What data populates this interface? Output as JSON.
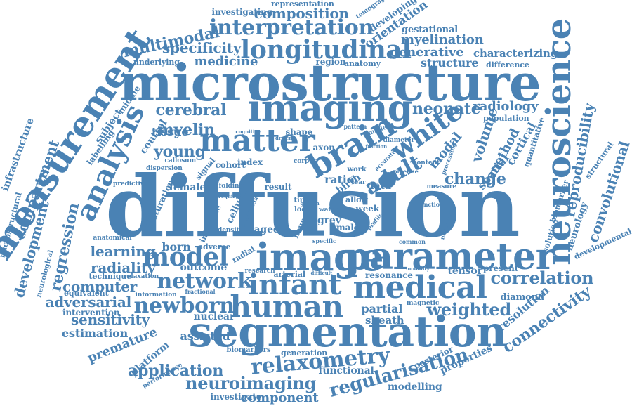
{
  "color": "#4a82b4",
  "words": [
    {
      "key": "diffusion",
      "text": "diffusion"
    },
    {
      "key": "microstructure",
      "text": "microstructure"
    },
    {
      "key": "segmentation",
      "text": "segmentation"
    },
    {
      "key": "image",
      "text": "image"
    },
    {
      "key": "parameter",
      "text": "parameter"
    },
    {
      "key": "imaging",
      "text": "imaging"
    },
    {
      "key": "measurement",
      "text": "measurement"
    },
    {
      "key": "neuroscience",
      "text": "neuroscience"
    },
    {
      "key": "matter",
      "text": "matter"
    },
    {
      "key": "brain",
      "text": "brain"
    },
    {
      "key": "medical",
      "text": "medical"
    },
    {
      "key": "human",
      "text": "human"
    },
    {
      "key": "infant",
      "text": "infant"
    },
    {
      "key": "longitudinal",
      "text": "longitudinal"
    },
    {
      "key": "interpretation",
      "text": "interpretation"
    },
    {
      "key": "analysis",
      "text": "analysis"
    },
    {
      "key": "white",
      "text": "white"
    },
    {
      "key": "model",
      "text": "model"
    },
    {
      "key": "relaxometry",
      "text": "relaxometry"
    },
    {
      "key": "network",
      "text": "network"
    },
    {
      "key": "newborn",
      "text": "newborn"
    },
    {
      "key": "adult",
      "text": "adult"
    },
    {
      "key": "regularisation",
      "text": "regularisation"
    },
    {
      "key": "neuroimaging",
      "text": "neuroimaging"
    },
    {
      "key": "application",
      "text": "application"
    },
    {
      "key": "reproducibility",
      "text": "reproducibility"
    },
    {
      "key": "convolutional",
      "text": "convolutional"
    },
    {
      "key": "correlation",
      "text": "correlation"
    },
    {
      "key": "weighted",
      "text": "weighted"
    },
    {
      "key": "computer",
      "text": "computer"
    },
    {
      "key": "adversarial",
      "text": "adversarial"
    },
    {
      "key": "connectivity",
      "text": "connectivity"
    },
    {
      "key": "regression",
      "text": "regression"
    },
    {
      "key": "compartment",
      "text": "compartment"
    },
    {
      "key": "development",
      "text": "development"
    },
    {
      "key": "multimodal",
      "text": "multimodal"
    },
    {
      "key": "specificity",
      "text": "specificity"
    },
    {
      "key": "composition",
      "text": "composition"
    },
    {
      "key": "cerebral",
      "text": "cerebral"
    },
    {
      "key": "myelin",
      "text": "myelin"
    },
    {
      "key": "young",
      "text": "young"
    },
    {
      "key": "neonate",
      "text": "neonate"
    },
    {
      "key": "change",
      "text": "change"
    },
    {
      "key": "learning",
      "text": "learning"
    },
    {
      "key": "radiality",
      "text": "radiality"
    },
    {
      "key": "sensitivity",
      "text": "sensitivity"
    },
    {
      "key": "estimation",
      "text": "estimation"
    },
    {
      "key": "premature",
      "text": "premature"
    },
    {
      "key": "component",
      "text": "component"
    },
    {
      "key": "infrastructure",
      "text": "infrastructure"
    },
    {
      "key": "medicine",
      "text": "medicine"
    },
    {
      "key": "orientation",
      "text": "orientation"
    },
    {
      "key": "myelination",
      "text": "myelination"
    },
    {
      "key": "generative",
      "text": "generative"
    },
    {
      "key": "characterizing",
      "text": "characterizing"
    },
    {
      "key": "structure",
      "text": "structure"
    },
    {
      "key": "radiology",
      "text": "radiology"
    },
    {
      "key": "volume",
      "text": "volume"
    },
    {
      "key": "modal",
      "text": "modal"
    },
    {
      "key": "method",
      "text": "method"
    },
    {
      "key": "spatial",
      "text": "spatial"
    },
    {
      "key": "cortical",
      "text": "cortical"
    },
    {
      "key": "tissue",
      "text": "tissue"
    },
    {
      "key": "control",
      "text": "control"
    },
    {
      "key": "subject",
      "text": "subject"
    },
    {
      "key": "middle",
      "text": "middle"
    },
    {
      "key": "labelling",
      "text": "labelling"
    },
    {
      "key": "born",
      "text": "born"
    },
    {
      "key": "outcome",
      "text": "outcome"
    },
    {
      "key": "nuclear",
      "text": "nuclear"
    },
    {
      "key": "assisted",
      "text": "assisted"
    },
    {
      "key": "platform",
      "text": "platform"
    },
    {
      "key": "partial",
      "text": "partial"
    },
    {
      "key": "sheath",
      "text": "sheath"
    },
    {
      "key": "resonance",
      "text": "resonance"
    },
    {
      "key": "tensor",
      "text": "tensor"
    },
    {
      "key": "present",
      "text": "present"
    },
    {
      "key": "diamond",
      "text": "diamond"
    },
    {
      "key": "resolution",
      "text": "resolution"
    },
    {
      "key": "functional",
      "text": "functional"
    },
    {
      "key": "modelling",
      "text": "modelling"
    },
    {
      "key": "properties",
      "text": "properties"
    },
    {
      "key": "posterior",
      "text": "posterior"
    },
    {
      "key": "investigate",
      "text": "investigate"
    },
    {
      "key": "female",
      "text": "female"
    },
    {
      "key": "result",
      "text": "result"
    },
    {
      "key": "ratio",
      "text": "ratio"
    },
    {
      "key": "data",
      "text": "data"
    },
    {
      "key": "week",
      "text": "week"
    },
    {
      "key": "grey",
      "text": "grey"
    },
    {
      "key": "male",
      "text": "male"
    },
    {
      "key": "aged",
      "text": "aged"
    },
    {
      "key": "cellular",
      "text": "cellular"
    },
    {
      "key": "maturation",
      "text": "maturation"
    },
    {
      "key": "inference",
      "text": "inference"
    },
    {
      "key": "cohort",
      "text": "cohort"
    },
    {
      "key": "index",
      "text": "index"
    },
    {
      "key": "axon",
      "text": "axon"
    },
    {
      "key": "shape",
      "text": "shape"
    },
    {
      "key": "neural",
      "text": "neural"
    },
    {
      "key": "birth",
      "text": "birth"
    },
    {
      "key": "allow",
      "text": "allow"
    },
    {
      "key": "region",
      "text": "region"
    },
    {
      "key": "anatomy",
      "text": "anatomy"
    },
    {
      "key": "underlying",
      "text": "underlying"
    },
    {
      "key": "difference",
      "text": "difference"
    },
    {
      "key": "population",
      "text": "population"
    },
    {
      "key": "quantitative",
      "text": "quantitative"
    },
    {
      "key": "structural",
      "text": "structural"
    },
    {
      "key": "biomarker",
      "text": "biomarker"
    },
    {
      "key": "neurology",
      "text": "neurology"
    },
    {
      "key": "solution",
      "text": "solution"
    },
    {
      "key": "developmental",
      "text": "developmental"
    },
    {
      "key": "microstructural",
      "text": "microstructural"
    },
    {
      "key": "neurological",
      "text": "neurological"
    },
    {
      "key": "anatomical",
      "text": "anatomical"
    },
    {
      "key": "technique",
      "text": "technique"
    },
    {
      "key": "relaxation",
      "text": "relaxation"
    },
    {
      "key": "equivalent",
      "text": "equivalent"
    },
    {
      "key": "intervention",
      "text": "intervention"
    },
    {
      "key": "information",
      "text": "information"
    },
    {
      "key": "performance",
      "text": "performance"
    },
    {
      "key": "biomarkers",
      "text": "biomarkers"
    },
    {
      "key": "generation",
      "text": "generation"
    },
    {
      "key": "investigating",
      "text": "investigating"
    },
    {
      "key": "representation",
      "text": "representation"
    },
    {
      "key": "tomography",
      "text": "tomography"
    },
    {
      "key": "developing",
      "text": "developing"
    },
    {
      "key": "gestational",
      "text": "gestational"
    },
    {
      "key": "callosum",
      "text": "callosum"
    },
    {
      "key": "signal",
      "text": "signal"
    },
    {
      "key": "dispersion",
      "text": "dispersion"
    },
    {
      "key": "predictive",
      "text": "predictive"
    },
    {
      "key": "folding",
      "text": "folding"
    },
    {
      "key": "substantial",
      "text": "substantial"
    },
    {
      "key": "density",
      "text": "density"
    },
    {
      "key": "adverse",
      "text": "adverse"
    },
    {
      "key": "radial",
      "text": "radial"
    },
    {
      "key": "research",
      "text": "research"
    },
    {
      "key": "arterial",
      "text": "arterial"
    },
    {
      "key": "fractional",
      "text": "fractional"
    },
    {
      "key": "growth",
      "text": "growth"
    },
    {
      "key": "magnetic",
      "text": "magnetic"
    },
    {
      "key": "cognitive",
      "text": "cognitive"
    },
    {
      "key": "driven",
      "text": "driven"
    },
    {
      "key": "pattern",
      "text": "pattern"
    },
    {
      "key": "smaller",
      "text": "smaller"
    },
    {
      "key": "diameter",
      "text": "diameter"
    },
    {
      "key": "content",
      "text": "content"
    },
    {
      "key": "processing",
      "text": "processing"
    },
    {
      "key": "measure",
      "text": "measure"
    },
    {
      "key": "function",
      "text": "function"
    },
    {
      "key": "noninvasive",
      "text": "noninvasive"
    },
    {
      "key": "modality",
      "text": "modality"
    },
    {
      "key": "common",
      "text": "common"
    },
    {
      "key": "specific",
      "text": "specific"
    },
    {
      "key": "difficult",
      "text": "difficult"
    },
    {
      "key": "corpus",
      "text": "corpus"
    },
    {
      "key": "pipeline",
      "text": "pipeline"
    },
    {
      "key": "work",
      "text": "work"
    },
    {
      "key": "year",
      "text": "year"
    },
    {
      "key": "time",
      "text": "time"
    },
    {
      "key": "local",
      "text": "local"
    },
    {
      "key": "water",
      "text": "water"
    },
    {
      "key": "significant",
      "text": "significant"
    },
    {
      "key": "require",
      "text": "require"
    },
    {
      "key": "accurate",
      "text": "accurate"
    },
    {
      "key": "profile",
      "text": "profile"
    },
    {
      "key": "fraction",
      "text": "fraction"
    }
  ]
}
